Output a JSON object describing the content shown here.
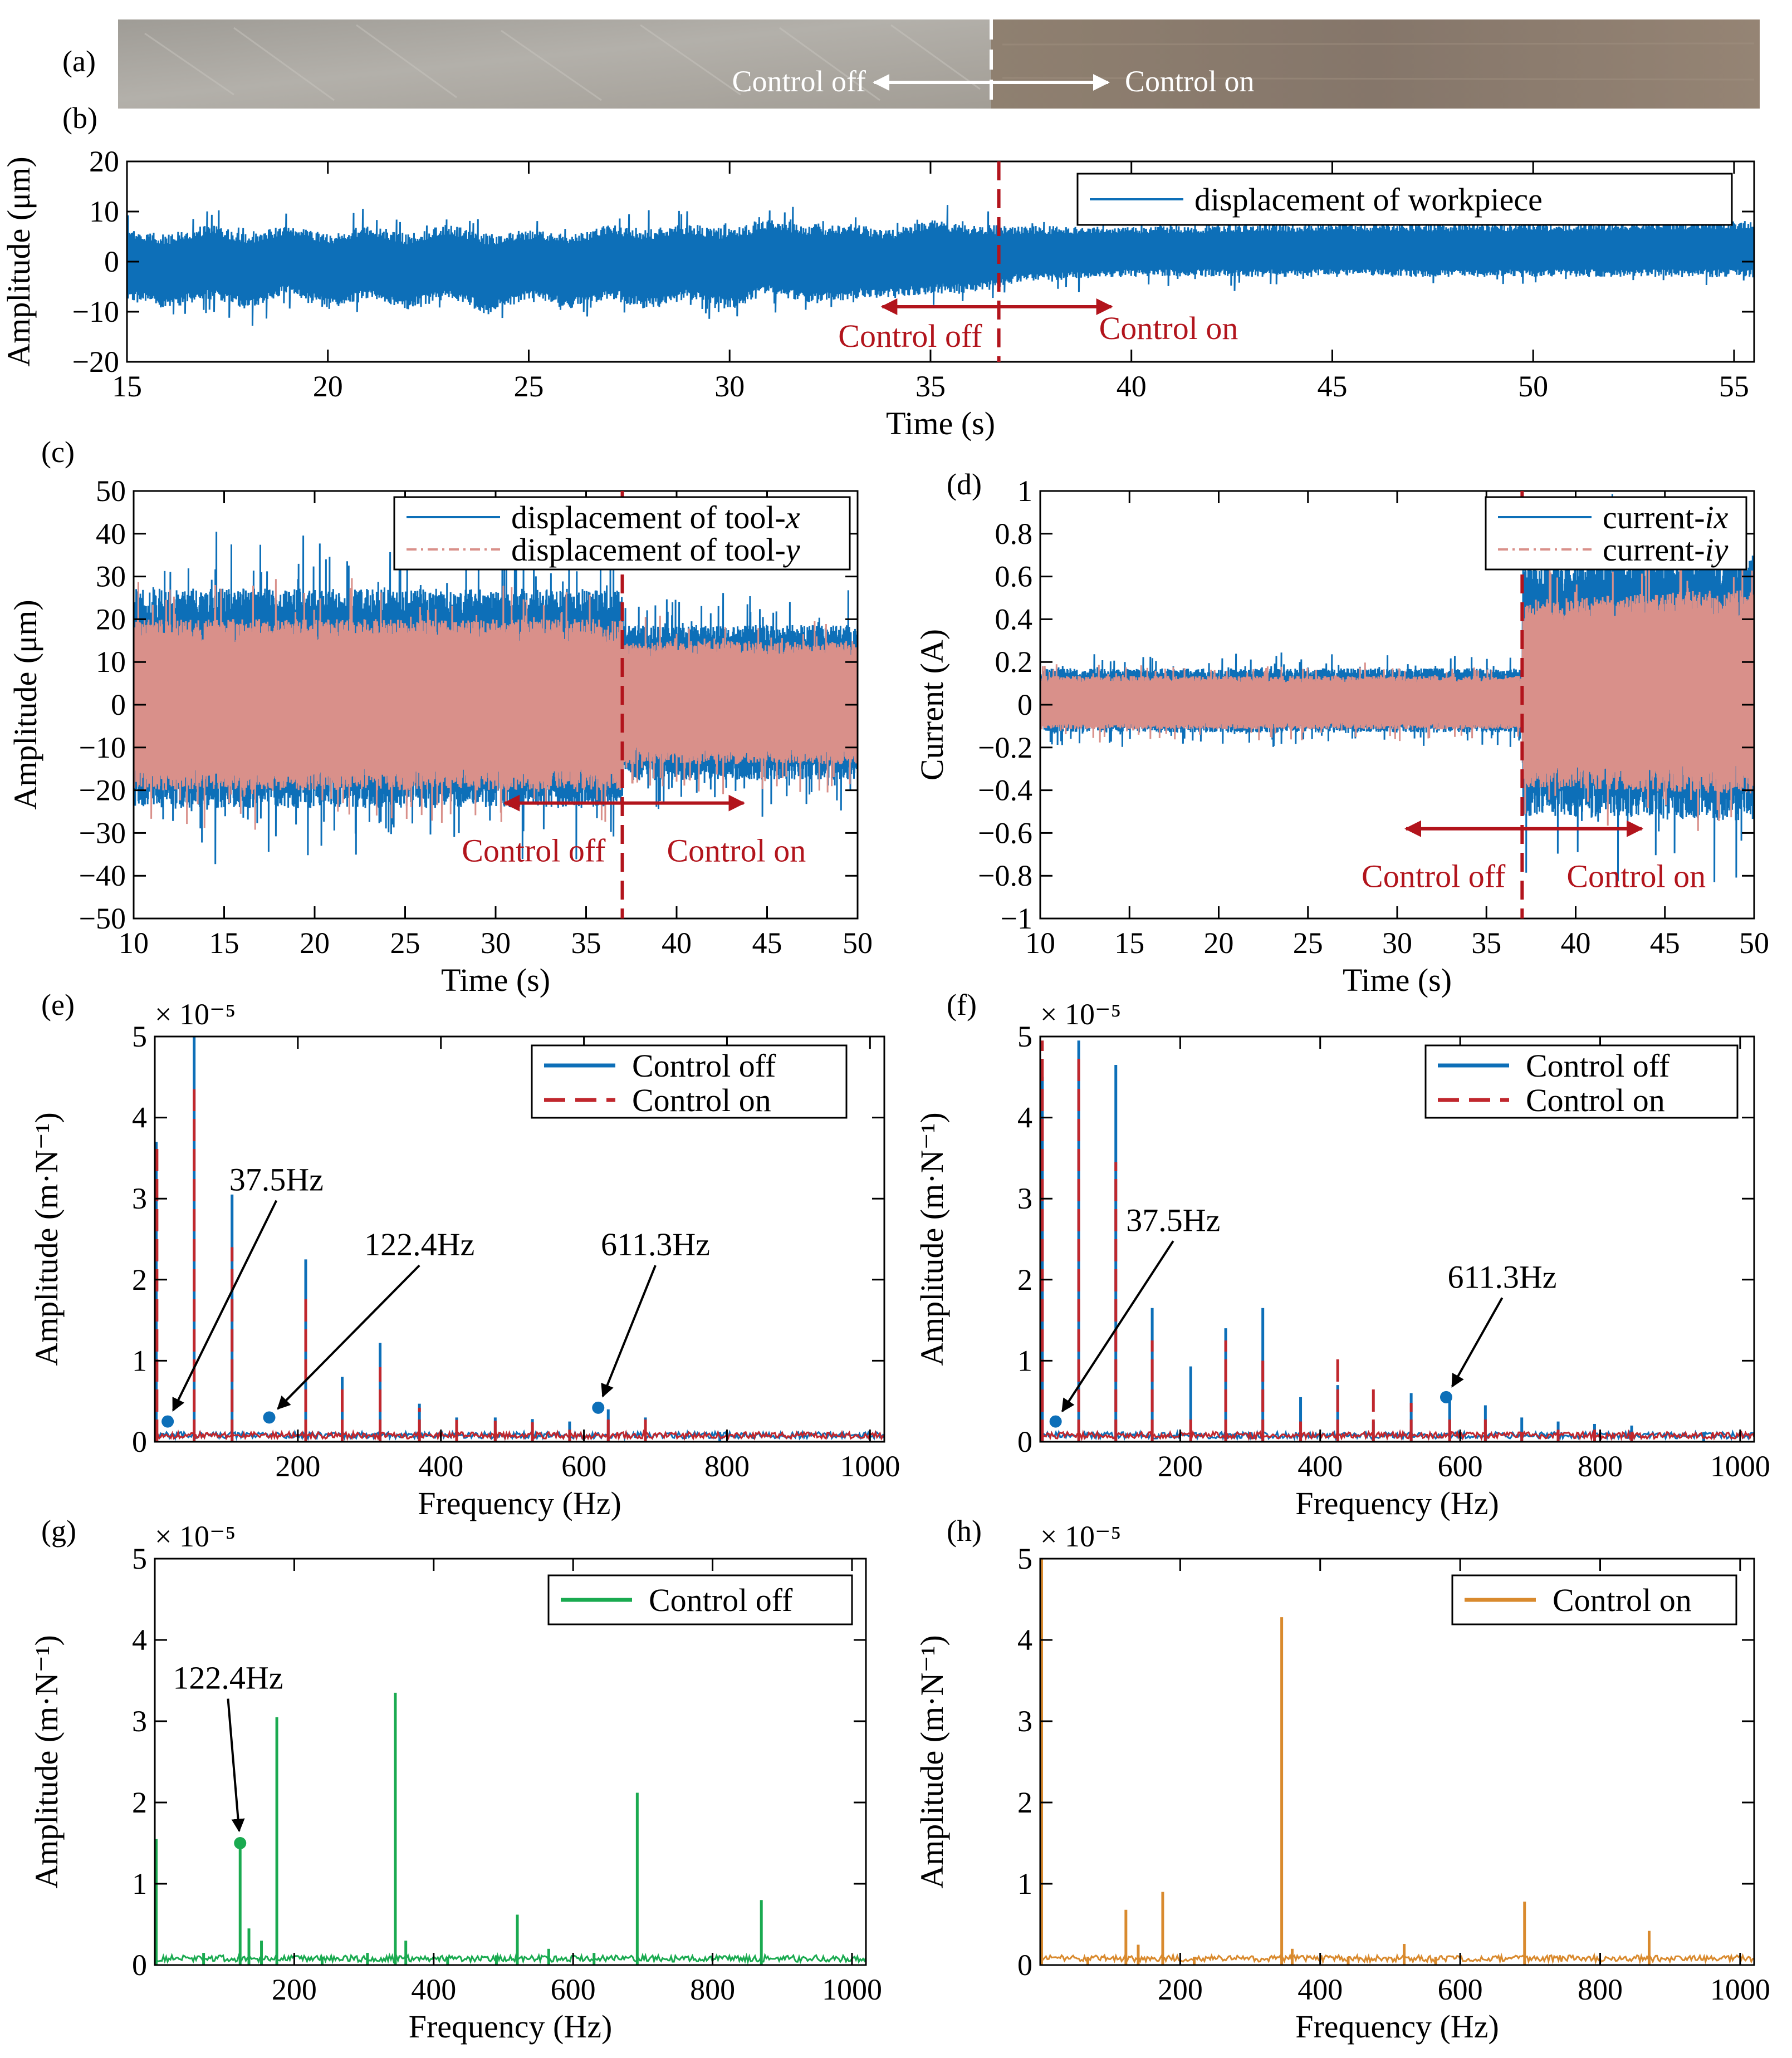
{
  "figure": {
    "panel_labels": [
      "(a)",
      "(b)",
      "(c)",
      "(d)",
      "(e)",
      "(f)",
      "(g)",
      "(h)"
    ],
    "photo": {
      "label": "(a)",
      "left_text": "Control off",
      "right_text": "Control on",
      "colors": {
        "left": "#a7a39c",
        "right": "#8c7d6e",
        "text": "#ffffff"
      }
    },
    "colors": {
      "blue": "#0d6fb8",
      "pink": "#d9908a",
      "red": "#c0272d",
      "dark_red": "#b2141c",
      "green": "#1aaa50",
      "orange": "#d98a2e"
    }
  },
  "chart_data": [
    {
      "id": "b",
      "label": "(b)",
      "type": "line",
      "title": "",
      "xlabel": "Time (s)",
      "ylabel": "Amplitude (μm)",
      "xlim": [
        15,
        55.5
      ],
      "ylim": [
        -20,
        20
      ],
      "xticks": [
        15,
        20,
        25,
        30,
        35,
        40,
        45,
        50,
        55
      ],
      "yticks": [
        -20,
        -10,
        0,
        10,
        20
      ],
      "xtick_labels": [
        "15",
        "20",
        "25",
        "30",
        "35",
        "40",
        "45",
        "50",
        "55"
      ],
      "ytick_labels": [
        "−20",
        "−10",
        "0",
        "10",
        "20"
      ],
      "series": [
        {
          "name": "displacement of workpiece",
          "color": "#0d6fb8",
          "envelope": {
            "x": [
              15,
              16,
              17,
              18,
              19,
              20,
              21,
              22,
              23,
              24,
              25,
              26,
              27,
              28,
              29,
              30,
              31,
              32,
              33,
              34,
              35,
              36,
              36.7,
              37,
              40,
              45,
              50,
              55.5
            ],
            "upper": [
              5,
              4,
              6,
              4,
              6,
              4,
              6,
              4,
              6,
              4,
              5,
              4,
              6,
              5,
              6,
              5,
              7,
              6,
              6,
              5,
              7,
              6,
              6,
              6,
              6,
              6.5,
              6.5,
              7
            ],
            "lower": [
              -6,
              -8,
              -6,
              -8,
              -5,
              -8,
              -6,
              -8,
              -6,
              -9,
              -6,
              -8,
              -6,
              -8,
              -6,
              -8,
              -5,
              -7,
              -6,
              -6,
              -5,
              -5,
              -4,
              -3,
              -2,
              -2,
              -2,
              -2
            ]
          }
        }
      ],
      "legend": "top-right",
      "annotation": {
        "x": 36.7,
        "left_text": "Control off",
        "right_text": "Control on",
        "arrow_y": -9,
        "arrow_x": [
          33.8,
          39.5
        ]
      }
    },
    {
      "id": "c",
      "label": "(c)",
      "type": "line",
      "title": "",
      "xlabel": "Time (s)",
      "ylabel": "Amplitude (μm)",
      "xlim": [
        10,
        50
      ],
      "ylim": [
        -50,
        50
      ],
      "xticks": [
        10,
        15,
        20,
        25,
        30,
        35,
        40,
        45,
        50
      ],
      "yticks": [
        -50,
        -40,
        -30,
        -20,
        -10,
        0,
        10,
        20,
        30,
        40,
        50
      ],
      "xtick_labels": [
        "10",
        "15",
        "20",
        "25",
        "30",
        "35",
        "40",
        "45",
        "50"
      ],
      "ytick_labels": [
        "−50",
        "−40",
        "−30",
        "−20",
        "−10",
        "0",
        "10",
        "20",
        "30",
        "40",
        "50"
      ],
      "series": [
        {
          "name": "displacement of tool-x",
          "name_base": "displacement of tool-",
          "name_var": "x",
          "color": "#0d6fb8",
          "envelope": {
            "x": [
              10,
              37,
              37.05,
              50
            ],
            "upper": [
              22,
              22,
              15,
              15
            ],
            "lower": [
              -19,
              -19,
              -14,
              -14
            ]
          }
        },
        {
          "name": "displacement of tool-y",
          "name_base": "displacement of tool-",
          "name_var": "y",
          "color": "#d9908a",
          "envelope": {
            "x": [
              10,
              37,
              37.05,
              50
            ],
            "upper": [
              16,
              16,
              12,
              12
            ],
            "lower": [
              -16,
              -16,
              -11,
              -11
            ]
          }
        }
      ],
      "legend": "top-right",
      "annotation": {
        "x": 37,
        "left_text": "Control off",
        "right_text": "Control on",
        "arrow_y": -23,
        "arrow_x": [
          30.5,
          43.7
        ]
      }
    },
    {
      "id": "d",
      "label": "(d)",
      "type": "line",
      "title": "",
      "xlabel": "Time (s)",
      "ylabel": "Current (A)",
      "xlim": [
        10,
        50
      ],
      "ylim": [
        -1,
        1
      ],
      "xticks": [
        10,
        15,
        20,
        25,
        30,
        35,
        40,
        45,
        50
      ],
      "yticks": [
        -1,
        -0.8,
        -0.6,
        -0.4,
        -0.2,
        0,
        0.2,
        0.4,
        0.6,
        0.8,
        1
      ],
      "xtick_labels": [
        "10",
        "15",
        "20",
        "25",
        "30",
        "35",
        "40",
        "45",
        "50"
      ],
      "ytick_labels": [
        "−1",
        "−0.8",
        "−0.6",
        "−0.4",
        "−0.2",
        "0",
        "0.2",
        "0.4",
        "0.6",
        "0.8",
        "1"
      ],
      "series": [
        {
          "name": "current-ix",
          "name_base": "current-",
          "name_var": "ix",
          "color": "#0d6fb8",
          "envelope": {
            "x": [
              10,
              37,
              37.05,
              50
            ],
            "upper": [
              0.14,
              0.14,
              0.55,
              0.6
            ],
            "lower": [
              -0.1,
              -0.1,
              -0.4,
              -0.42
            ]
          }
        },
        {
          "name": "current-iy",
          "name_base": "current-",
          "name_var": "iy",
          "color": "#d9908a",
          "envelope": {
            "x": [
              10,
              37,
              37.05,
              50
            ],
            "upper": [
              0.11,
              0.11,
              0.4,
              0.45
            ],
            "lower": [
              -0.09,
              -0.09,
              -0.3,
              -0.32
            ]
          }
        }
      ],
      "legend": "top-right",
      "annotation": {
        "x": 37,
        "left_text": "Control off",
        "right_text": "Control on",
        "arrow_y": -0.58,
        "arrow_x": [
          30.5,
          43.7
        ]
      }
    },
    {
      "id": "e",
      "label": "(e)",
      "type": "line",
      "title": "",
      "xlabel": "Frequency (Hz)",
      "ylabel": "Amplitude (m·N⁻¹)",
      "exponent_label": "× 10⁻⁵",
      "xlim": [
        0,
        1020
      ],
      "ylim": [
        0,
        5
      ],
      "xticks": [
        200,
        400,
        600,
        800,
        1000
      ],
      "yticks": [
        0,
        1,
        2,
        3,
        4,
        5
      ],
      "xtick_labels": [
        "200",
        "400",
        "600",
        "800",
        "1000"
      ],
      "ytick_labels": [
        "0",
        "1",
        "2",
        "3",
        "4",
        "5"
      ],
      "series": [
        {
          "name": "Control off",
          "color": "#0d6fb8",
          "style": "solid",
          "peaks": [
            [
              2,
              3.7
            ],
            [
              55,
              5.0
            ],
            [
              108,
              3.05
            ],
            [
              211,
              2.25
            ],
            [
              262,
              0.8
            ],
            [
              315,
              1.22
            ],
            [
              370,
              0.47
            ],
            [
              422,
              0.3
            ],
            [
              476,
              0.3
            ],
            [
              528,
              0.28
            ],
            [
              580,
              0.25
            ],
            [
              634,
              0.4
            ],
            [
              686,
              0.3
            ],
            [
              790,
              0.12
            ]
          ]
        },
        {
          "name": "Control on",
          "color": "#c0272d",
          "style": "dashed",
          "peaks": [
            [
              3,
              3.7
            ],
            [
              55,
              4.35
            ],
            [
              108,
              2.4
            ],
            [
              211,
              1.8
            ],
            [
              262,
              0.7
            ],
            [
              315,
              0.92
            ],
            [
              370,
              0.42
            ],
            [
              422,
              0.27
            ],
            [
              476,
              0.26
            ],
            [
              528,
              0.24
            ],
            [
              580,
              0.15
            ],
            [
              634,
              0.28
            ],
            [
              686,
              0.32
            ]
          ]
        }
      ],
      "legend": "top-right",
      "markers": [
        {
          "x": 18,
          "y": 0.25
        },
        {
          "x": 160,
          "y": 0.3
        },
        {
          "x": 620,
          "y": 0.42
        }
      ],
      "callouts": [
        {
          "text": "37.5Hz",
          "x": 170,
          "y": 3.1,
          "tip_x": 18,
          "tip_y": 0.25
        },
        {
          "text": "122.4Hz",
          "x": 370,
          "y": 2.3,
          "tip_x": 160,
          "tip_y": 0.3
        },
        {
          "text": "611.3Hz",
          "x": 700,
          "y": 2.3,
          "tip_x": 620,
          "tip_y": 0.42
        }
      ]
    },
    {
      "id": "f",
      "label": "(f)",
      "type": "line",
      "title": "",
      "xlabel": "Frequency (Hz)",
      "ylabel": "Amplitude (m·N⁻¹)",
      "exponent_label": "× 10⁻⁵",
      "xlim": [
        0,
        1020
      ],
      "ylim": [
        0,
        5
      ],
      "xticks": [
        200,
        400,
        600,
        800,
        1000
      ],
      "yticks": [
        0,
        1,
        2,
        3,
        4,
        5
      ],
      "xtick_labels": [
        "200",
        "400",
        "600",
        "800",
        "1000"
      ],
      "ytick_labels": [
        "0",
        "1",
        "2",
        "3",
        "4",
        "5"
      ],
      "series": [
        {
          "name": "Control off",
          "color": "#0d6fb8",
          "style": "solid",
          "peaks": [
            [
              3,
              4.5
            ],
            [
              55,
              4.95
            ],
            [
              108,
              4.65
            ],
            [
              160,
              1.65
            ],
            [
              215,
              0.93
            ],
            [
              265,
              1.4
            ],
            [
              318,
              1.65
            ],
            [
              372,
              0.55
            ],
            [
              425,
              0.7
            ],
            [
              476,
              0.25
            ],
            [
              530,
              0.6
            ],
            [
              585,
              0.55
            ],
            [
              636,
              0.45
            ],
            [
              688,
              0.3
            ],
            [
              740,
              0.25
            ],
            [
              792,
              0.22
            ],
            [
              845,
              0.2
            ],
            [
              948,
              0.12
            ]
          ]
        },
        {
          "name": "Control on",
          "color": "#c0272d",
          "style": "dashed",
          "peaks": [
            [
              3,
              4.95
            ],
            [
              55,
              4.75
            ],
            [
              108,
              3.45
            ],
            [
              160,
              1.25
            ],
            [
              215,
              0.35
            ],
            [
              265,
              1.25
            ],
            [
              318,
              1.0
            ],
            [
              372,
              0.25
            ],
            [
              425,
              1.1
            ],
            [
              476,
              0.65
            ],
            [
              530,
              0.48
            ],
            [
              585,
              0.35
            ],
            [
              636,
              0.32
            ],
            [
              688,
              0.12
            ],
            [
              740,
              0.15
            ],
            [
              792,
              0.15
            ],
            [
              845,
              0.12
            ]
          ]
        }
      ],
      "legend": "top-right",
      "markers": [
        {
          "x": 22,
          "y": 0.25
        },
        {
          "x": 580,
          "y": 0.55
        }
      ],
      "callouts": [
        {
          "text": "37.5Hz",
          "x": 190,
          "y": 2.6,
          "tip_x": 22,
          "tip_y": 0.25
        },
        {
          "text": "611.3Hz",
          "x": 660,
          "y": 1.9,
          "tip_x": 580,
          "tip_y": 0.55
        }
      ]
    },
    {
      "id": "g",
      "label": "(g)",
      "type": "line",
      "title": "",
      "xlabel": "Frequency (Hz)",
      "ylabel": "Amplitude (m·N⁻¹)",
      "exponent_label": "× 10⁻⁵",
      "xlim": [
        0,
        1020
      ],
      "ylim": [
        0,
        5
      ],
      "xticks": [
        200,
        400,
        600,
        800,
        1000
      ],
      "yticks": [
        0,
        1,
        2,
        3,
        4,
        5
      ],
      "xtick_labels": [
        "200",
        "400",
        "600",
        "800",
        "1000"
      ],
      "ytick_labels": [
        "0",
        "1",
        "2",
        "3",
        "4",
        "5"
      ],
      "series": [
        {
          "name": "Control off",
          "color": "#1aaa50",
          "style": "solid",
          "peaks": [
            [
              2,
              1.55
            ],
            [
              70,
              0.15
            ],
            [
              122.4,
              1.5
            ],
            [
              135,
              0.45
            ],
            [
              153,
              0.3
            ],
            [
              175,
              3.05
            ],
            [
              240,
              0.1
            ],
            [
              305,
              0.15
            ],
            [
              345,
              3.35
            ],
            [
              360,
              0.3
            ],
            [
              420,
              0.1
            ],
            [
              490,
              0.12
            ],
            [
              520,
              0.62
            ],
            [
              565,
              0.2
            ],
            [
              630,
              0.15
            ],
            [
              692,
              2.12
            ],
            [
              870,
              0.8
            ]
          ]
        }
      ],
      "legend": "top-right",
      "markers": [
        {
          "x": 122.4,
          "y": 1.5
        }
      ],
      "callouts": [
        {
          "text": "122.4Hz",
          "x": 105,
          "y": 3.4,
          "tip_x": 122.4,
          "tip_y": 1.5
        }
      ]
    },
    {
      "id": "h",
      "label": "(h)",
      "type": "line",
      "title": "",
      "xlabel": "Frequency (Hz)",
      "ylabel": "Amplitude (m·N⁻¹)",
      "exponent_label": "× 10⁻⁵",
      "xlim": [
        0,
        1020
      ],
      "ylim": [
        0,
        5
      ],
      "xticks": [
        200,
        400,
        600,
        800,
        1000
      ],
      "yticks": [
        0,
        1,
        2,
        3,
        4,
        5
      ],
      "xtick_labels": [
        "200",
        "400",
        "600",
        "800",
        "1000"
      ],
      "ytick_labels": [
        "0",
        "1",
        "2",
        "3",
        "4",
        "5"
      ],
      "series": [
        {
          "name": "Control on",
          "color": "#d98a2e",
          "style": "solid",
          "peaks": [
            [
              2,
              5.0
            ],
            [
              68,
              0.1
            ],
            [
              122.4,
              0.68
            ],
            [
              140,
              0.25
            ],
            [
              175,
              0.9
            ],
            [
              220,
              0.1
            ],
            [
              345,
              4.28
            ],
            [
              360,
              0.2
            ],
            [
              440,
              0.1
            ],
            [
              520,
              0.26
            ],
            [
              565,
              0.1
            ],
            [
              692,
              0.78
            ],
            [
              870,
              0.42
            ]
          ]
        }
      ],
      "legend": "top-right",
      "markers": [],
      "callouts": []
    }
  ]
}
